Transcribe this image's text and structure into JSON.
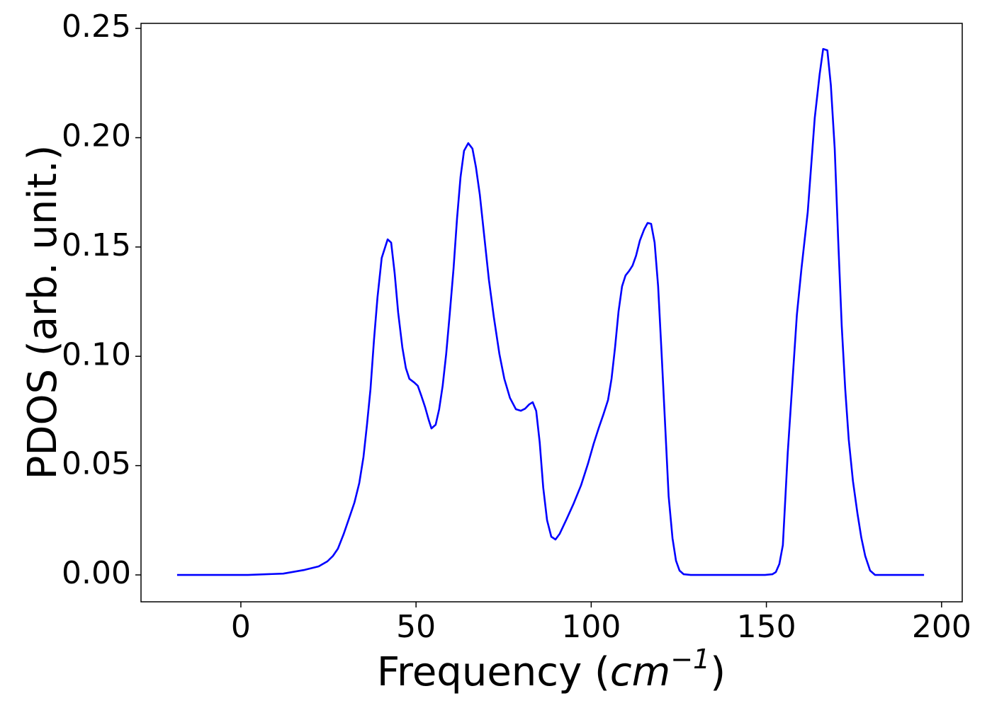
{
  "chart_data": {
    "type": "line",
    "xlabel": [
      "Frequency (",
      "cm",
      "−1",
      ")"
    ],
    "ylabel": "PDOS (arb. unit.)",
    "xlim": [
      -28.5,
      205.9
    ],
    "ylim": [
      -0.0123,
      0.2523
    ],
    "xticks": [
      0,
      50,
      100,
      150,
      200
    ],
    "yticks": [
      {
        "value": 0,
        "label": "0.00"
      },
      {
        "value": 0.05,
        "label": "0.05"
      },
      {
        "value": 0.1,
        "label": "0.10"
      },
      {
        "value": 0.15,
        "label": "0.15"
      },
      {
        "value": 0.2,
        "label": "0.20"
      },
      {
        "value": 0.25,
        "label": "0.25"
      }
    ],
    "x": [
      -18.2,
      2,
      12.1,
      18.2,
      22.2,
      24.7,
      26.3,
      27.7,
      29.3,
      30.7,
      32.4,
      33.8,
      35,
      36,
      37,
      38,
      39,
      40.2,
      41.9,
      42.9,
      43.9,
      44.9,
      46.1,
      47.1,
      48.1,
      49.5,
      50.5,
      51.5,
      52.6,
      53.6,
      54.4,
      55.6,
      56.6,
      57.6,
      58.6,
      59.6,
      60.7,
      61.7,
      62.7,
      63.7,
      64.9,
      66.1,
      67.1,
      68.2,
      69.4,
      70.8,
      72.2,
      73.8,
      75.2,
      76.8,
      78.5,
      79.9,
      81.1,
      82.3,
      83.3,
      84.3,
      85.3,
      86.3,
      87.4,
      88.6,
      89.8,
      91,
      93,
      95,
      97.1,
      99.1,
      100.7,
      102.1,
      103.5,
      104.8,
      105.8,
      106.8,
      107.8,
      108.8,
      109.8,
      110.8,
      111.8,
      112.8,
      113.9,
      115.1,
      116.1,
      117.1,
      118.1,
      119.1,
      120.1,
      121.1,
      122.1,
      123.2,
      124.2,
      125.2,
      126.4,
      128.4,
      149.6,
      151.7,
      152.7,
      153.7,
      154.7,
      156.1,
      158.7,
      160,
      161.8,
      163.8,
      165.2,
      166.2,
      167.4,
      168.4,
      169.5,
      170.5,
      171.5,
      172.5,
      173.5,
      174.7,
      176,
      177.1,
      178.2,
      179.6,
      181,
      195
    ],
    "series": [
      {
        "color": "#0000ff",
        "values": [
          0,
          0,
          0.0006,
          0.0023,
          0.0039,
          0.0062,
          0.0087,
          0.012,
          0.0185,
          0.025,
          0.033,
          0.042,
          0.054,
          0.0687,
          0.085,
          0.1075,
          0.127,
          0.145,
          0.1535,
          0.152,
          0.138,
          0.12,
          0.104,
          0.0946,
          0.0897,
          0.088,
          0.0865,
          0.082,
          0.0767,
          0.071,
          0.067,
          0.0687,
          0.0758,
          0.0865,
          0.101,
          0.119,
          0.14,
          0.163,
          0.182,
          0.194,
          0.1975,
          0.195,
          0.1865,
          0.174,
          0.156,
          0.135,
          0.118,
          0.101,
          0.0897,
          0.081,
          0.0758,
          0.0751,
          0.076,
          0.078,
          0.079,
          0.075,
          0.0606,
          0.04,
          0.025,
          0.0175,
          0.0162,
          0.0188,
          0.0256,
          0.0327,
          0.041,
          0.051,
          0.06,
          0.067,
          0.0735,
          0.08,
          0.0897,
          0.104,
          0.1205,
          0.132,
          0.137,
          0.139,
          0.1415,
          0.146,
          0.153,
          0.158,
          0.161,
          0.1606,
          0.152,
          0.132,
          0.101,
          0.0687,
          0.036,
          0.0168,
          0.0065,
          0.002,
          0.0003,
          0,
          0,
          0.0003,
          0.0013,
          0.005,
          0.0136,
          0.056,
          0.119,
          0.14,
          0.166,
          0.209,
          0.229,
          0.2406,
          0.24,
          0.224,
          0.195,
          0.153,
          0.114,
          0.085,
          0.062,
          0.043,
          0.028,
          0.017,
          0.0087,
          0.002,
          0,
          0
        ]
      }
    ]
  }
}
